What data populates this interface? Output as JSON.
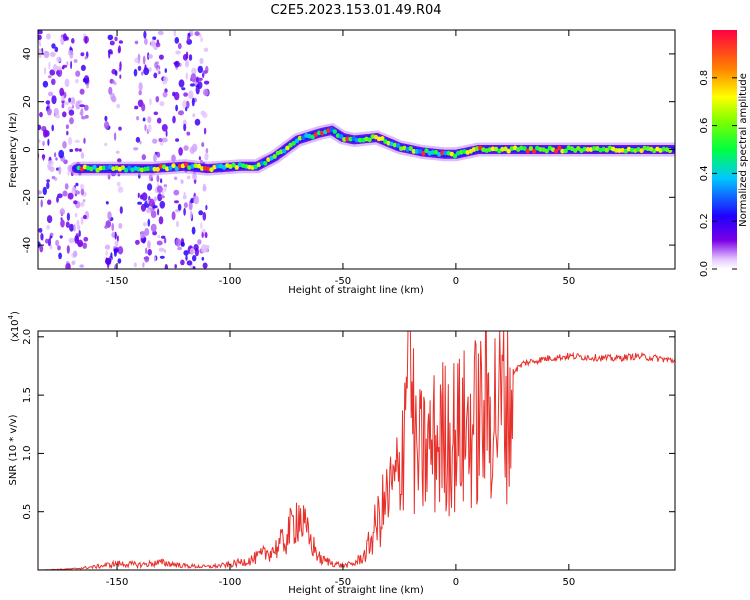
{
  "title": "C2E5.2023.153.01.49.R04",
  "colors": {
    "snr_line": "#e8302a",
    "axis": "#000000",
    "background": "#ffffff",
    "spectrogram_background": "#ffffff"
  },
  "chart_data": [
    {
      "type": "heatmap",
      "xlabel": "Height of straight line (km)",
      "ylabel": "Frequency (Hz)",
      "xlim": [
        -185,
        97
      ],
      "ylim": [
        -50,
        50
      ],
      "xticks": [
        -150,
        -100,
        -50,
        0,
        50
      ],
      "xtick_labels": [
        "-150",
        "-100",
        "-50",
        "0",
        "50"
      ],
      "yticks": [
        -40,
        -20,
        0,
        20,
        40
      ],
      "ytick_labels": [
        "-40",
        "-20",
        "0",
        "20",
        "40"
      ],
      "colorbar": {
        "label": "Normalized spectral amplitude",
        "range": [
          0,
          1
        ],
        "ticks": [
          0.0,
          0.2,
          0.4,
          0.6,
          0.8
        ],
        "tick_labels": [
          "0.0",
          "0.2",
          "0.4",
          "0.6",
          "0.8"
        ],
        "colormap": "rainbow (violet-blue-cyan-green-yellow-red)"
      },
      "ridge": {
        "description": "Peak-frequency track vs height",
        "points": [
          [
            -168,
            -8
          ],
          [
            -150,
            -8
          ],
          [
            -135,
            -8
          ],
          [
            -120,
            -7
          ],
          [
            -110,
            -8
          ],
          [
            -95,
            -7
          ],
          [
            -88,
            -7
          ],
          [
            -80,
            -3
          ],
          [
            -70,
            4
          ],
          [
            -60,
            7
          ],
          [
            -55,
            8
          ],
          [
            -50,
            5
          ],
          [
            -45,
            4
          ],
          [
            -35,
            5
          ],
          [
            -25,
            1
          ],
          [
            -15,
            -1
          ],
          [
            -5,
            -2
          ],
          [
            0,
            -2
          ],
          [
            10,
            0
          ],
          [
            20,
            0
          ],
          [
            40,
            0
          ],
          [
            60,
            0
          ],
          [
            80,
            0
          ],
          [
            95,
            0
          ]
        ]
      },
      "noise_regions_km": [
        [
          -185,
          -163
        ],
        [
          -155,
          -148
        ],
        [
          -142,
          -128
        ],
        [
          -125,
          -110
        ]
      ]
    },
    {
      "type": "line",
      "xlabel": "Height of straight line (km)",
      "ylabel": "SNR (10 * v/v)",
      "y_multiplier": "(x10^4)",
      "y_multiplier_base": "(x10",
      "y_multiplier_exp": "4",
      "y_multiplier_close": ")",
      "xlim": [
        -185,
        97
      ],
      "ylim": [
        0,
        2.05
      ],
      "xticks": [
        -150,
        -100,
        -50,
        0,
        50
      ],
      "xtick_labels": [
        "-150",
        "-100",
        "-50",
        "0",
        "50"
      ],
      "yticks": [
        0.5,
        1.0,
        1.5,
        2.0
      ],
      "ytick_labels": [
        "0.5",
        "1.0",
        "1.5",
        "2.0"
      ],
      "series": [
        {
          "envelope": [
            [
              -185,
              0.0
            ],
            [
              -170,
              0.01
            ],
            [
              -160,
              0.03
            ],
            [
              -150,
              0.06
            ],
            [
              -140,
              0.05
            ],
            [
              -130,
              0.07
            ],
            [
              -120,
              0.04
            ],
            [
              -110,
              0.03
            ],
            [
              -100,
              0.05
            ],
            [
              -90,
              0.1
            ],
            [
              -80,
              0.2
            ],
            [
              -75,
              0.3
            ],
            [
              -70,
              0.55
            ],
            [
              -65,
              0.3
            ],
            [
              -60,
              0.1
            ],
            [
              -50,
              0.04
            ],
            [
              -45,
              0.06
            ],
            [
              -40,
              0.15
            ],
            [
              -35,
              0.45
            ],
            [
              -30,
              0.7
            ],
            [
              -25,
              0.9
            ],
            [
              -21,
              2.05
            ],
            [
              -18,
              1.1
            ],
            [
              -15,
              1.1
            ],
            [
              -10,
              1.2
            ],
            [
              -5,
              1.3
            ],
            [
              0,
              1.3
            ],
            [
              5,
              1.35
            ],
            [
              10,
              1.45
            ],
            [
              15,
              1.55
            ],
            [
              20,
              1.6
            ],
            [
              25,
              1.7
            ],
            [
              30,
              1.78
            ],
            [
              40,
              1.82
            ],
            [
              50,
              1.84
            ],
            [
              60,
              1.83
            ],
            [
              70,
              1.82
            ],
            [
              80,
              1.84
            ],
            [
              90,
              1.82
            ],
            [
              97,
              1.8
            ]
          ]
        }
      ]
    }
  ]
}
